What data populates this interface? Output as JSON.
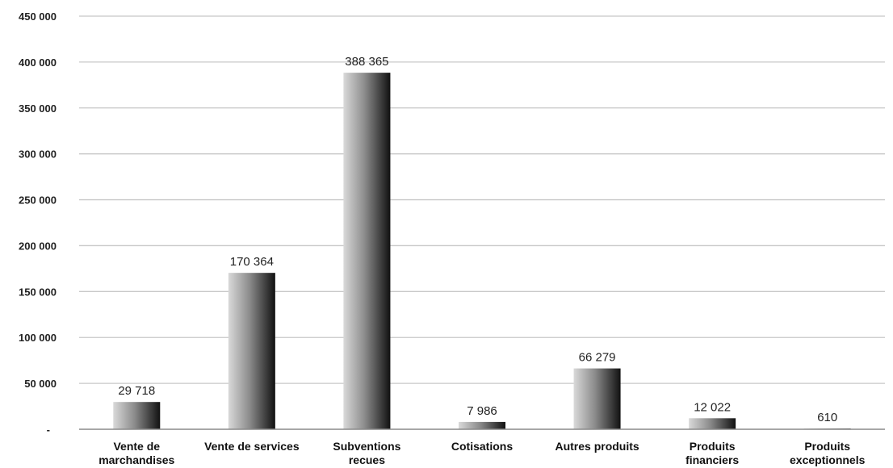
{
  "chart_data": {
    "type": "bar",
    "title": "",
    "xlabel": "",
    "ylabel": "",
    "categories": [
      [
        "Vente de",
        "marchandises"
      ],
      [
        "Vente de services"
      ],
      [
        "Subventions",
        "recues"
      ],
      [
        "Cotisations"
      ],
      [
        "Autres produits"
      ],
      [
        "Produits",
        "financiers"
      ],
      [
        "Produits",
        "exceptionnels"
      ]
    ],
    "values": [
      29718,
      170364,
      388365,
      7986,
      66279,
      12022,
      610
    ],
    "value_labels": [
      "29 718",
      "170 364",
      "388 365",
      "7 986",
      "66 279",
      "12 022",
      "610"
    ],
    "ylim": [
      0,
      450000
    ],
    "yticks": [
      0,
      50000,
      100000,
      150000,
      200000,
      250000,
      300000,
      350000,
      400000,
      450000
    ],
    "ytick_labels": [
      "-",
      "50 000",
      "100 000",
      "150 000",
      "200 000",
      "250 000",
      "300 000",
      "350 000",
      "400 000",
      "450 000"
    ],
    "grid": true,
    "legend": "none",
    "bar_gradient": [
      "#d9d9d9",
      "#111111"
    ]
  }
}
